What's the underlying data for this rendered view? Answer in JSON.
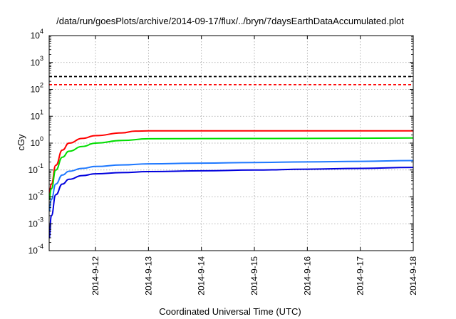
{
  "chart_data": {
    "type": "line",
    "title": "/data/run/goesPlots/archive/2014-09-17/flux/../bryn/7daysEarthDataAccumulated.plot",
    "xlabel": "Coordinated Universal Time (UTC)",
    "ylabel": "cGy",
    "y_scale": "log",
    "ylim": [
      0.0001,
      10000
    ],
    "y_ticks": [
      {
        "value": 0.0001,
        "base": "10",
        "exp": "-4"
      },
      {
        "value": 0.001,
        "base": "10",
        "exp": "-3"
      },
      {
        "value": 0.01,
        "base": "10",
        "exp": "-2"
      },
      {
        "value": 0.1,
        "base": "10",
        "exp": "-1"
      },
      {
        "value": 1,
        "base": "10",
        "exp": "0"
      },
      {
        "value": 10,
        "base": "10",
        "exp": "1"
      },
      {
        "value": 100,
        "base": "10",
        "exp": "2"
      },
      {
        "value": 1000,
        "base": "10",
        "exp": "3"
      },
      {
        "value": 10000,
        "base": "10",
        "exp": "4"
      }
    ],
    "xlim": [
      "2014-9-11 03:00",
      "2014-9-18 00:00"
    ],
    "x_ticks": [
      "2014-9-12",
      "2014-9-13",
      "2014-9-14",
      "2014-9-15",
      "2014-9-16",
      "2014-9-17",
      "2014-9-18"
    ],
    "grid": true,
    "thresholds": [
      {
        "value": 300,
        "color": "#000000",
        "style": "dashed"
      },
      {
        "value": 150,
        "color": "#ff0000",
        "style": "dashed"
      }
    ],
    "series": [
      {
        "color": "#ff0000",
        "x": [
          "2014-9-11 03:00",
          "2014-9-11 04:00",
          "2014-9-11 06:00",
          "2014-9-11 09:00",
          "2014-9-11 12:00",
          "2014-9-11 18:00",
          "2014-9-12 00:00",
          "2014-9-12 12:00",
          "2014-9-12 18:00",
          "2014-9-13 00:00",
          "2014-9-14 00:00",
          "2014-9-16 00:00",
          "2014-9-18 00:00"
        ],
        "y": [
          0.012,
          0.03,
          0.15,
          0.55,
          1.0,
          1.5,
          1.9,
          2.4,
          2.8,
          2.85,
          2.85,
          2.85,
          2.85
        ]
      },
      {
        "color": "#00dd00",
        "x": [
          "2014-9-11 03:00",
          "2014-9-11 04:00",
          "2014-9-11 06:00",
          "2014-9-11 09:00",
          "2014-9-11 12:00",
          "2014-9-11 18:00",
          "2014-9-12 00:00",
          "2014-9-12 12:00",
          "2014-9-13 00:00",
          "2014-9-14 00:00",
          "2014-9-16 00:00",
          "2014-9-18 00:00"
        ],
        "y": [
          0.008,
          0.02,
          0.1,
          0.3,
          0.5,
          0.75,
          1.0,
          1.25,
          1.45,
          1.48,
          1.5,
          1.55
        ]
      },
      {
        "color": "#1e78ff",
        "x": [
          "2014-9-11 03:00",
          "2014-9-11 04:00",
          "2014-9-11 06:00",
          "2014-9-11 09:00",
          "2014-9-11 12:00",
          "2014-9-11 18:00",
          "2014-9-12 00:00",
          "2014-9-12 12:00",
          "2014-9-13 00:00",
          "2014-9-14 00:00",
          "2014-9-15 00:00",
          "2014-9-16 00:00",
          "2014-9-17 00:00",
          "2014-9-18 00:00"
        ],
        "y": [
          0.003,
          0.008,
          0.03,
          0.065,
          0.09,
          0.115,
          0.135,
          0.155,
          0.17,
          0.18,
          0.19,
          0.2,
          0.21,
          0.225
        ]
      },
      {
        "color": "#0000dd",
        "x": [
          "2014-9-11 03:00",
          "2014-9-11 04:00",
          "2014-9-11 06:00",
          "2014-9-11 09:00",
          "2014-9-11 12:00",
          "2014-9-11 18:00",
          "2014-9-12 00:00",
          "2014-9-12 12:00",
          "2014-9-13 00:00",
          "2014-9-14 00:00",
          "2014-9-15 00:00",
          "2014-9-16 00:00",
          "2014-9-17 00:00",
          "2014-9-18 00:00"
        ],
        "y": [
          0.0003,
          0.002,
          0.012,
          0.03,
          0.045,
          0.062,
          0.072,
          0.08,
          0.087,
          0.093,
          0.1,
          0.107,
          0.115,
          0.125
        ]
      }
    ]
  }
}
